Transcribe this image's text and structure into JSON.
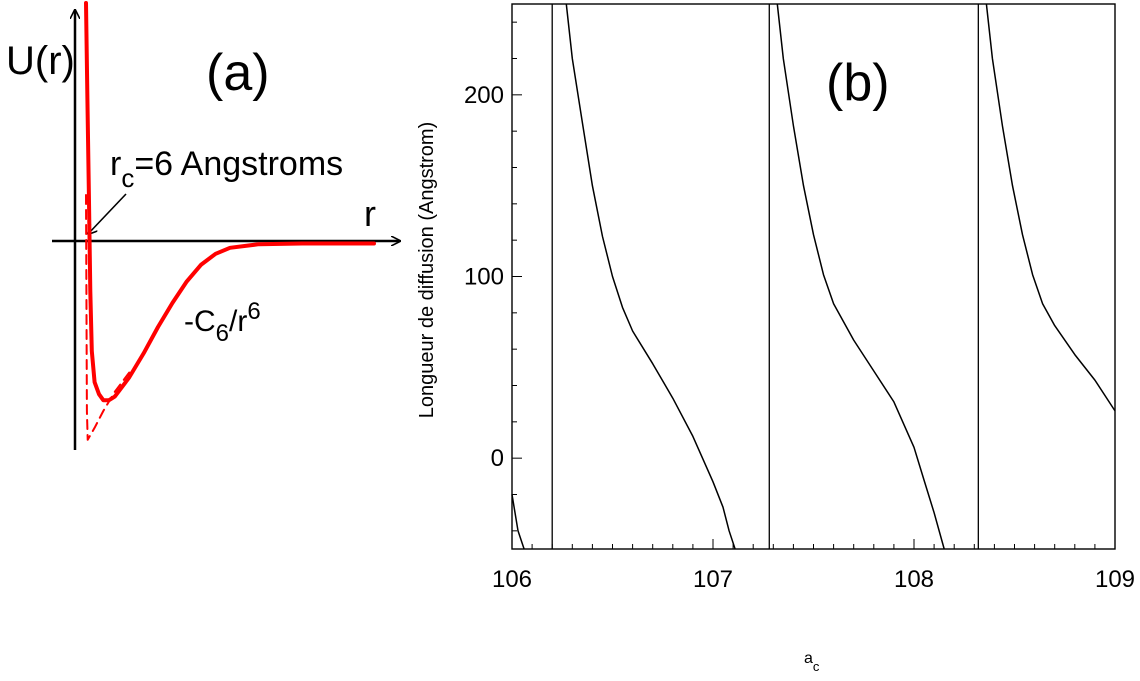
{
  "chart_data": [
    {
      "type": "line",
      "panel_label": "(a)",
      "xlabel": "r",
      "ylabel": "U(r)",
      "annotations": [
        {
          "text_main": "r",
          "text_sub": "c",
          "text_rest": "=6 Angstroms"
        },
        {
          "text_main": "-C",
          "text_sub": "6",
          "text_rest": "/r",
          "text_sup": "6"
        }
      ],
      "series": [
        {
          "style": "solid",
          "color": "#ff0000",
          "points": [
            [
              0.0,
              1.0
            ],
            [
              0.005,
              0.6
            ],
            [
              0.01,
              0.2
            ],
            [
              0.015,
              -0.2
            ],
            [
              0.02,
              -0.45
            ],
            [
              0.03,
              -0.58
            ],
            [
              0.045,
              -0.63
            ],
            [
              0.06,
              -0.655
            ],
            [
              0.08,
              -0.655
            ],
            [
              0.1,
              -0.64
            ],
            [
              0.15,
              -0.56
            ],
            [
              0.2,
              -0.46
            ],
            [
              0.25,
              -0.35
            ],
            [
              0.3,
              -0.25
            ],
            [
              0.35,
              -0.16
            ],
            [
              0.4,
              -0.09
            ],
            [
              0.45,
              -0.045
            ],
            [
              0.5,
              -0.02
            ],
            [
              0.6,
              -0.005
            ],
            [
              0.75,
              -0.002
            ],
            [
              1.0,
              -0.002
            ]
          ]
        },
        {
          "style": "dashed",
          "color": "#ff0000",
          "points": [
            [
              0.0,
              0.2
            ],
            [
              0.003,
              -0.7
            ],
            [
              0.006,
              -0.82
            ],
            [
              0.03,
              -0.77
            ],
            [
              0.06,
              -0.7
            ],
            [
              0.1,
              -0.62
            ],
            [
              0.15,
              -0.54
            ]
          ]
        }
      ]
    },
    {
      "type": "line",
      "panel_label": "(b)",
      "xlabel_main": "a",
      "xlabel_sub": "c",
      "ylabel": "Longueur de diffusion (Angstrom)",
      "xlim": [
        106,
        109
      ],
      "ylim": [
        -50,
        250
      ],
      "xticks": [
        "106",
        "107",
        "108",
        "109"
      ],
      "yticks": [
        "0",
        "100",
        "200"
      ],
      "vertical_lines": [
        106.2,
        107.28,
        108.32
      ],
      "series": [
        {
          "color": "#000000",
          "x": [
            106.0,
            106.03,
            106.06
          ],
          "y": [
            -20,
            -40,
            -50
          ]
        },
        {
          "color": "#000000",
          "x": [
            106.27,
            106.3,
            106.35,
            106.4,
            106.45,
            106.5,
            106.55,
            106.6,
            106.7,
            106.8,
            106.9,
            107.0,
            107.05,
            107.08,
            107.11
          ],
          "y": [
            250,
            220,
            185,
            150,
            122,
            100,
            83,
            70,
            52,
            33,
            12,
            -13,
            -27,
            -40,
            -50
          ]
        },
        {
          "color": "#000000",
          "x": [
            107.32,
            107.35,
            107.4,
            107.45,
            107.5,
            107.55,
            107.6,
            107.7,
            107.8,
            107.9,
            108.0,
            108.05,
            108.1,
            108.15
          ],
          "y": [
            250,
            220,
            183,
            150,
            123,
            101,
            85,
            65,
            48,
            31,
            6,
            -12,
            -30,
            -50
          ]
        },
        {
          "color": "#000000",
          "x": [
            108.36,
            108.39,
            108.44,
            108.49,
            108.54,
            108.59,
            108.64,
            108.7,
            108.8,
            108.9,
            109.0
          ],
          "y": [
            250,
            220,
            183,
            150,
            123,
            101,
            85,
            73,
            57,
            43,
            26
          ]
        }
      ]
    }
  ]
}
